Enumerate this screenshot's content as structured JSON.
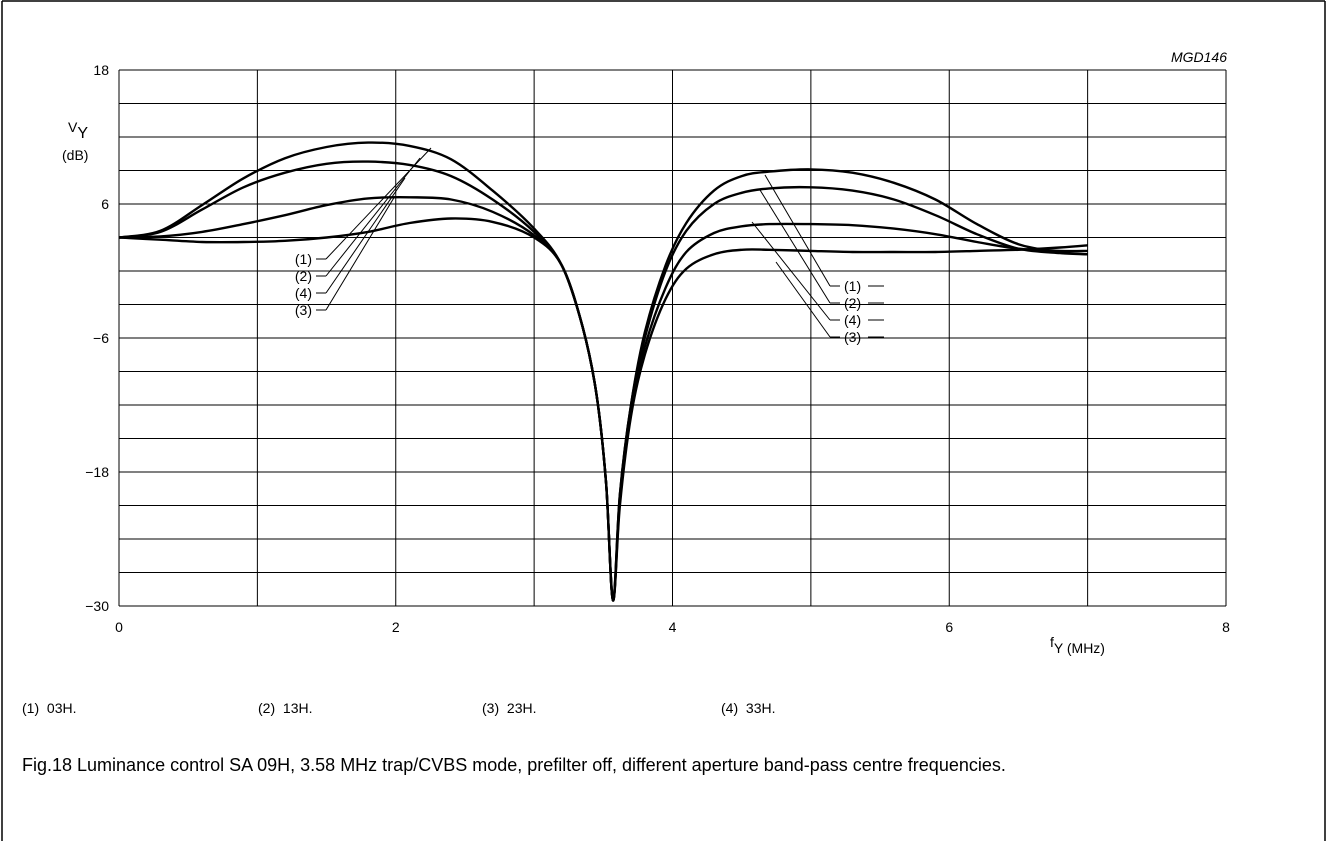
{
  "figure_id": "MGD146",
  "caption": "Fig.18  Luminance control SA 09H, 3.58 MHz trap/CVBS mode, prefilter off, different aperture band-pass centre frequencies.",
  "legend_items": [
    {
      "key": "(1)",
      "text": "03H."
    },
    {
      "key": "(2)",
      "text": "13H."
    },
    {
      "key": "(3)",
      "text": "23H."
    },
    {
      "key": "(4)",
      "text": "33H."
    }
  ],
  "curve_labels_left": [
    "(1)",
    "(2)",
    "(4)",
    "(3)"
  ],
  "curve_labels_right": [
    "(1)",
    "(2)",
    "(4)",
    "(3)"
  ],
  "chart_data": {
    "type": "line",
    "ylabel_main": "V",
    "ylabel_sub": "Y",
    "ylabel_unit": "(dB)",
    "xlabel_main": "f",
    "xlabel_sub": "Y",
    "xlabel_unit": " (MHz)",
    "xlim": [
      0,
      8
    ],
    "ylim": [
      -30,
      18
    ],
    "x_ticks": [
      0,
      2,
      4,
      6,
      8
    ],
    "y_ticks": [
      18,
      6,
      -6,
      -18,
      -30
    ],
    "x_grid_step": 1,
    "y_grid_step": 3,
    "grid": true,
    "series": [
      {
        "name": "(1)",
        "points": [
          [
            0,
            3
          ],
          [
            0.3,
            3.6
          ],
          [
            0.6,
            5.9
          ],
          [
            0.9,
            8.3
          ],
          [
            1.2,
            10.1
          ],
          [
            1.5,
            11.1
          ],
          [
            1.8,
            11.5
          ],
          [
            2.1,
            11.2
          ],
          [
            2.4,
            10.0
          ],
          [
            2.7,
            7.2
          ],
          [
            3.0,
            3.8
          ],
          [
            3.2,
            0.5
          ],
          [
            3.35,
            -5
          ],
          [
            3.45,
            -11
          ],
          [
            3.52,
            -19
          ],
          [
            3.57,
            -29.5
          ],
          [
            3.62,
            -20
          ],
          [
            3.7,
            -12
          ],
          [
            3.8,
            -5.5
          ],
          [
            3.95,
            0.5
          ],
          [
            4.1,
            4.3
          ],
          [
            4.3,
            7.2
          ],
          [
            4.5,
            8.5
          ],
          [
            4.7,
            8.9
          ],
          [
            5.0,
            9.1
          ],
          [
            5.3,
            8.8
          ],
          [
            5.6,
            7.9
          ],
          [
            5.9,
            6.4
          ],
          [
            6.2,
            4.2
          ],
          [
            6.5,
            2.4
          ],
          [
            6.8,
            1.7
          ],
          [
            7.0,
            1.5
          ]
        ]
      },
      {
        "name": "(2)",
        "points": [
          [
            0,
            3
          ],
          [
            0.3,
            3.5
          ],
          [
            0.6,
            5.5
          ],
          [
            0.9,
            7.5
          ],
          [
            1.2,
            8.8
          ],
          [
            1.5,
            9.6
          ],
          [
            1.8,
            9.8
          ],
          [
            2.1,
            9.5
          ],
          [
            2.4,
            8.5
          ],
          [
            2.7,
            6.4
          ],
          [
            3.0,
            3.5
          ],
          [
            3.2,
            0.5
          ],
          [
            3.35,
            -5
          ],
          [
            3.45,
            -11
          ],
          [
            3.52,
            -19
          ],
          [
            3.57,
            -29.5
          ],
          [
            3.62,
            -20
          ],
          [
            3.7,
            -12
          ],
          [
            3.8,
            -6
          ],
          [
            3.95,
            0
          ],
          [
            4.1,
            3.6
          ],
          [
            4.3,
            6.0
          ],
          [
            4.5,
            7.0
          ],
          [
            4.7,
            7.4
          ],
          [
            5.0,
            7.5
          ],
          [
            5.3,
            7.2
          ],
          [
            5.6,
            6.4
          ],
          [
            5.9,
            5.0
          ],
          [
            6.2,
            3.3
          ],
          [
            6.5,
            2.0
          ],
          [
            6.8,
            1.6
          ],
          [
            7.0,
            1.5
          ]
        ]
      },
      {
        "name": "(3)",
        "points": [
          [
            0,
            3
          ],
          [
            0.3,
            2.8
          ],
          [
            0.6,
            2.6
          ],
          [
            0.9,
            2.6
          ],
          [
            1.2,
            2.7
          ],
          [
            1.5,
            3.0
          ],
          [
            1.8,
            3.5
          ],
          [
            2.1,
            4.3
          ],
          [
            2.4,
            4.7
          ],
          [
            2.7,
            4.4
          ],
          [
            3.0,
            3.0
          ],
          [
            3.2,
            0.5
          ],
          [
            3.35,
            -5
          ],
          [
            3.45,
            -11
          ],
          [
            3.52,
            -19
          ],
          [
            3.57,
            -29.5
          ],
          [
            3.62,
            -21
          ],
          [
            3.7,
            -13
          ],
          [
            3.8,
            -7.5
          ],
          [
            3.95,
            -2.5
          ],
          [
            4.1,
            0.2
          ],
          [
            4.3,
            1.5
          ],
          [
            4.5,
            1.9
          ],
          [
            4.7,
            1.9
          ],
          [
            5.0,
            1.8
          ],
          [
            5.3,
            1.7
          ],
          [
            5.6,
            1.7
          ],
          [
            5.9,
            1.7
          ],
          [
            6.2,
            1.8
          ],
          [
            6.5,
            1.9
          ],
          [
            6.8,
            2.1
          ],
          [
            7.0,
            2.3
          ]
        ]
      },
      {
        "name": "(4)",
        "points": [
          [
            0,
            3
          ],
          [
            0.3,
            3.1
          ],
          [
            0.6,
            3.5
          ],
          [
            0.9,
            4.2
          ],
          [
            1.2,
            5.0
          ],
          [
            1.5,
            5.9
          ],
          [
            1.8,
            6.5
          ],
          [
            2.1,
            6.6
          ],
          [
            2.4,
            6.4
          ],
          [
            2.7,
            5.3
          ],
          [
            3.0,
            3.2
          ],
          [
            3.2,
            0.5
          ],
          [
            3.35,
            -5
          ],
          [
            3.45,
            -11
          ],
          [
            3.52,
            -19
          ],
          [
            3.57,
            -29.5
          ],
          [
            3.62,
            -20.5
          ],
          [
            3.7,
            -12.5
          ],
          [
            3.8,
            -6.8
          ],
          [
            3.95,
            -1.5
          ],
          [
            4.1,
            1.7
          ],
          [
            4.3,
            3.4
          ],
          [
            4.5,
            4.0
          ],
          [
            4.7,
            4.2
          ],
          [
            5.0,
            4.2
          ],
          [
            5.3,
            4.1
          ],
          [
            5.6,
            3.8
          ],
          [
            5.9,
            3.3
          ],
          [
            6.2,
            2.6
          ],
          [
            6.5,
            2.0
          ],
          [
            6.8,
            1.8
          ],
          [
            7.0,
            1.8
          ]
        ]
      }
    ]
  }
}
